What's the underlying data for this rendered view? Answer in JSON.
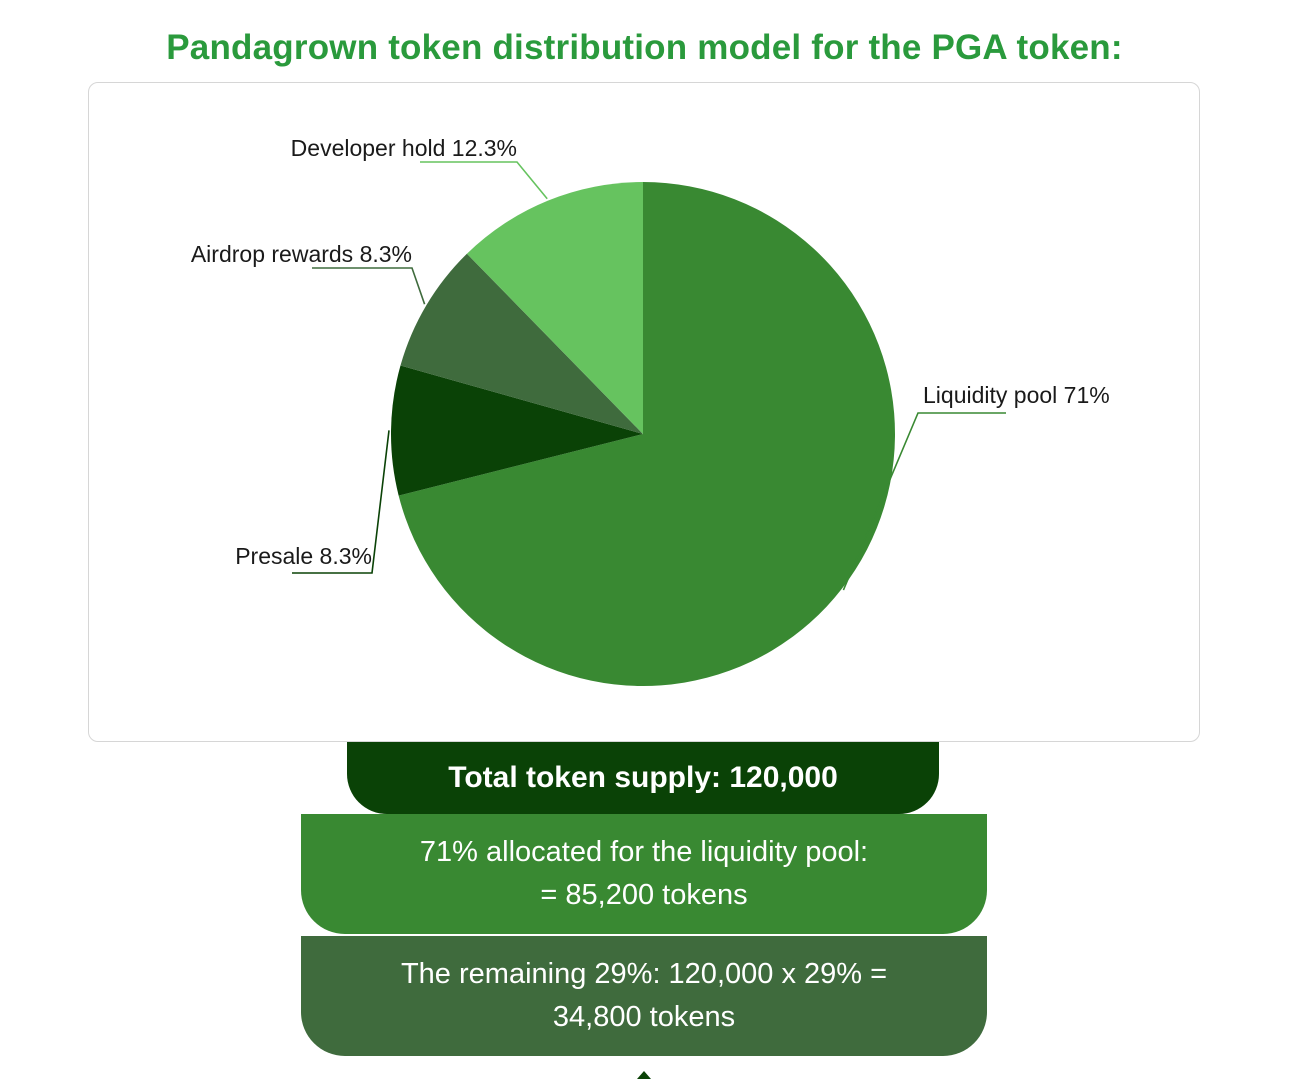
{
  "title": "Pandagrown token distribution model for the PGA token:",
  "chart_data": {
    "type": "pie",
    "slices": [
      {
        "label": "Liquidity pool 71%",
        "value": 71,
        "color": "#398932"
      },
      {
        "label": "Presale 8.3%",
        "value": 8.3,
        "color": "#0a4206"
      },
      {
        "label": "Airdrop rewards 8.3%",
        "value": 8.3,
        "color": "#3f6b3d"
      },
      {
        "label": "Developer hold 12.3%",
        "value": 12.3,
        "color": "#66c35f"
      }
    ]
  },
  "summary": {
    "total": "Total token supply: 120,000",
    "liquidity_line1": "71% allocated for the liquidity pool:",
    "liquidity_line2": "= 85,200 tokens",
    "remaining_line1": "The remaining 29%: 120,000 x 29% =",
    "remaining_line2": "34,800 tokens"
  },
  "colors": {
    "title": "#2a9a3c",
    "box_total": "#0a4206",
    "box_liquidity": "#398932",
    "box_remaining": "#3f6b3d"
  }
}
